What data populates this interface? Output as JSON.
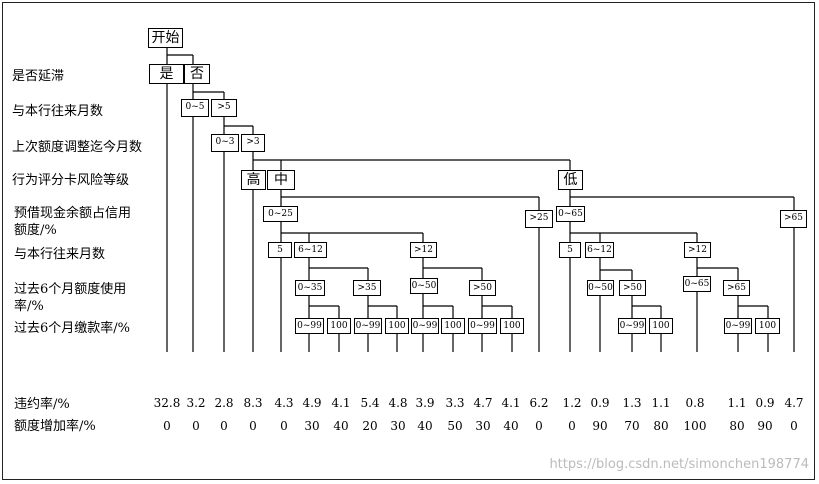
{
  "row_labels": {
    "delay": "是否延滞",
    "months1": "与本行往来月数",
    "adjust": "上次额度调整迄今月数",
    "risk": "行为评分卡风险等级",
    "cash": "预借现金余额占信用\n额度/%",
    "months2": "与本行往来月数",
    "usage": "过去6个月额度使用\n率/%",
    "pay": "过去6个月缴款率/%"
  },
  "nodes": {
    "start": "开始",
    "yes": "是",
    "no": "否",
    "m_0_5": "0~5",
    "m_gt5": ">5",
    "a_0_3": "0~3",
    "a_gt3": ">3",
    "high": "高",
    "mid": "中",
    "low": "低",
    "c_0_25": "0~25",
    "c_gt25": ">25",
    "c_0_65": "0~65",
    "c_gt65": ">65",
    "m2a_5": "5",
    "m2a_6_12": "6~12",
    "m2a_gt12": ">12",
    "m2b_5": "5",
    "m2b_6_12": "6~12",
    "m2b_gt12": ">12",
    "u1_0_35": "0~35",
    "u1_gt35": ">35",
    "u2_0_50": "0~50",
    "u2_gt50": ">50",
    "u3_0_50": "0~50",
    "u3_gt50": ">50",
    "u4_0_65": "0~65",
    "u4_gt65": ">65",
    "p1": "0~99",
    "p2": "100",
    "p3": "0~99",
    "p4": "100",
    "p5": "0~99",
    "p6": "100",
    "p7": "0~99",
    "p8": "100",
    "p9": "0~99",
    "p10": "100",
    "p11": "0~99",
    "p12": "100"
  },
  "results": {
    "default_label": "违约率/%",
    "increase_label": "额度增加率/%",
    "default_rates": [
      "32.8",
      "3.2",
      "2.8",
      "8.3",
      "4.3",
      "4.9",
      "4.1",
      "5.4",
      "4.8",
      "3.9",
      "3.3",
      "4.7",
      "4.1",
      "6.2",
      "1.2",
      "0.9",
      "1.3",
      "1.1",
      "0.8",
      "1.1",
      "0.9",
      "4.7"
    ],
    "increase_rates": [
      "0",
      "0",
      "0",
      "0",
      "0",
      "30",
      "40",
      "20",
      "30",
      "40",
      "50",
      "30",
      "40",
      "0",
      "0",
      "90",
      "70",
      "80",
      "100",
      "80",
      "90",
      "0"
    ]
  },
  "watermark": "https://blog.csdn.net/simonchen198774"
}
